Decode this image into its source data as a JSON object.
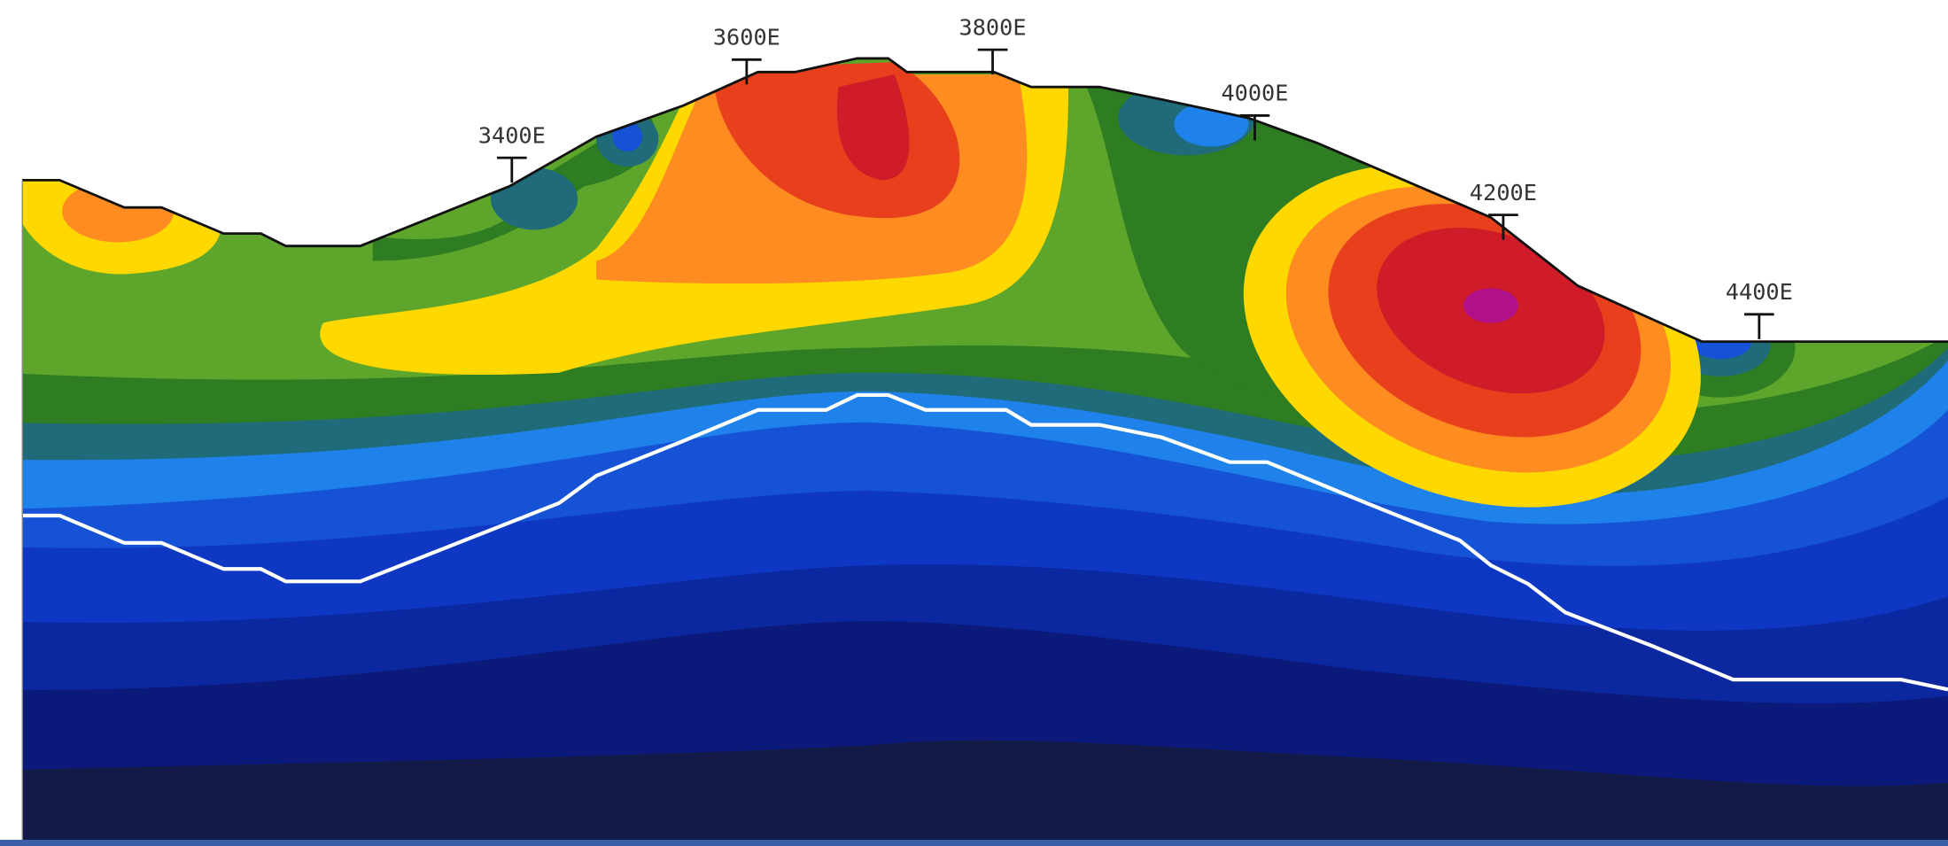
{
  "stations": [
    "3400E",
    "3600E",
    "3800E",
    "4000E",
    "4200E",
    "4400E"
  ]
}
